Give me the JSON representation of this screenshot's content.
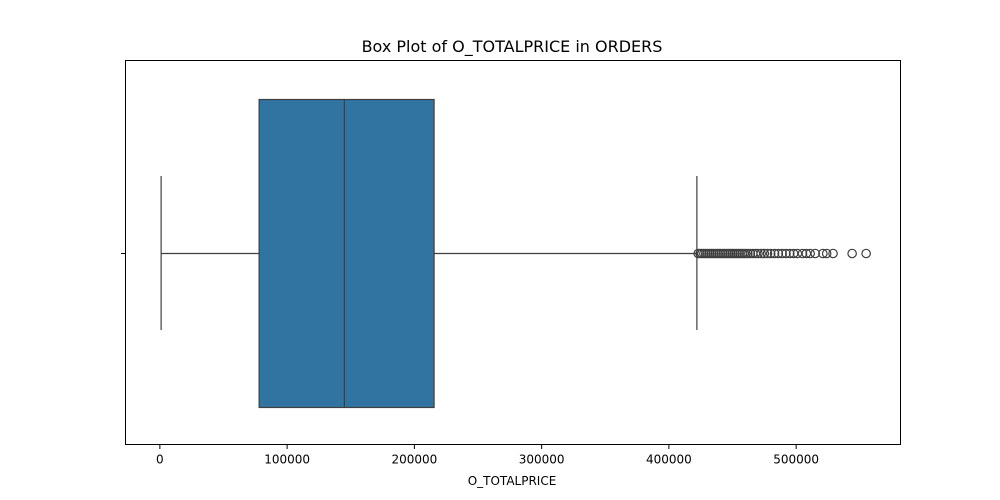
{
  "chart_data": {
    "type": "box",
    "title": "Box Plot of O_TOTALPRICE in ORDERS",
    "xlabel": "O_TOTALPRICE",
    "ylabel": "",
    "orientation": "horizontal",
    "xlim": [
      -27000,
      582000
    ],
    "xticks": [
      0,
      100000,
      200000,
      300000,
      400000,
      500000
    ],
    "xtick_labels": [
      "0",
      "100000",
      "200000",
      "300000",
      "400000",
      "500000"
    ],
    "grid": false,
    "box": {
      "whisker_low": 1000,
      "q1": 78000,
      "median": 145000,
      "q3": 215500,
      "whisker_high": 422000,
      "color": "#3274a1",
      "edge_color": "#3f3f3f"
    },
    "outliers": [
      423000,
      424500,
      426000,
      427500,
      429000,
      430500,
      432000,
      433500,
      435000,
      436500,
      438000,
      439500,
      441000,
      442500,
      444000,
      445500,
      447000,
      448500,
      450000,
      451500,
      453000,
      454500,
      456000,
      457500,
      459000,
      460500,
      462000,
      464000,
      466000,
      468000,
      470000,
      472500,
      475000,
      477500,
      480000,
      483000,
      486000,
      489000,
      492000,
      495000,
      498000,
      501000,
      505000,
      508000,
      511000,
      515000,
      521000,
      524000,
      529000,
      544000,
      555000
    ]
  }
}
